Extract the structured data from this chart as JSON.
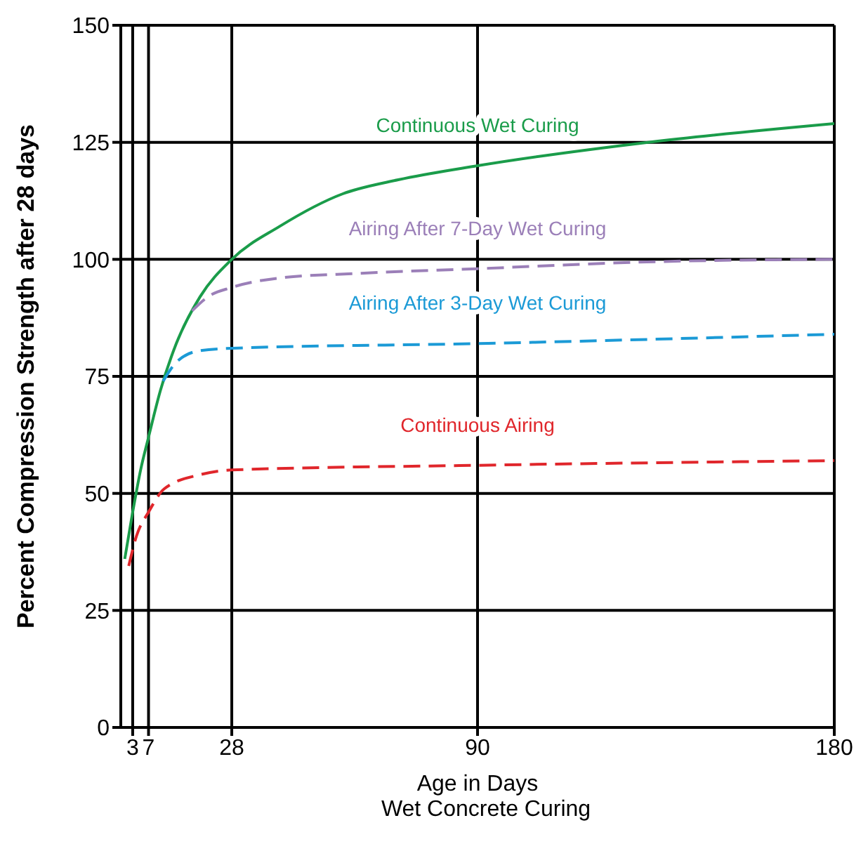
{
  "chart_data": {
    "type": "line",
    "xlabel": "Age in Days",
    "ylabel": "Percent Compression Strength after 28 days",
    "annotations": [
      "Wet Concrete Curing"
    ],
    "xlim": [
      0,
      180
    ],
    "xticks": [
      3,
      7,
      28,
      90,
      180
    ],
    "ylim": [
      0,
      150
    ],
    "yticks": [
      0,
      25,
      50,
      75,
      100,
      125,
      150
    ],
    "grid": true,
    "legend": false,
    "marker": "none",
    "series": [
      {
        "name": "Continuous Wet Curing",
        "color": "#1a9c4a",
        "line_style": "solid",
        "x": [
          1,
          3,
          5,
          7,
          10,
          14,
          20,
          28,
          40,
          56,
          70,
          90,
          133,
          180
        ],
        "values": [
          36,
          46,
          55,
          62,
          72,
          82,
          92,
          100,
          107,
          114,
          117,
          120,
          125,
          129
        ]
      },
      {
        "name": "Airing After 7-Day Wet Curing",
        "color": "#9b7fb8",
        "line_style": "dashed",
        "x": [
          18,
          22,
          28,
          40,
          60,
          90,
          135,
          180
        ],
        "values": [
          89,
          92,
          94,
          96,
          97,
          98,
          99.5,
          100
        ]
      },
      {
        "name": "Airing After 3-Day Wet Curing",
        "color": "#1b9ad6",
        "line_style": "dashed",
        "x": [
          10.7,
          14,
          20,
          28,
          90,
          180
        ],
        "values": [
          74,
          78,
          80.5,
          81,
          82,
          84
        ]
      },
      {
        "name": "Continuous Airing",
        "color": "#e0262b",
        "line_style": "dashed",
        "x": [
          2,
          4,
          7,
          11,
          20,
          28,
          90,
          180
        ],
        "values": [
          34.5,
          41,
          46,
          51,
          54,
          55,
          56,
          57
        ]
      }
    ]
  }
}
